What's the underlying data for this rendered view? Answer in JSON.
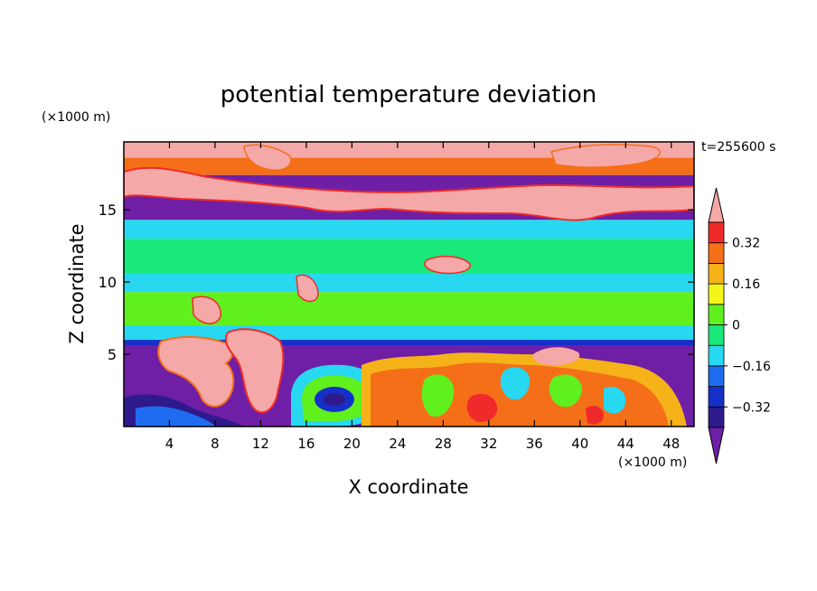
{
  "chart_data": {
    "type": "heatmap",
    "title": "potential temperature deviation",
    "xlabel": "X coordinate",
    "ylabel": "Z coordinate",
    "x_unit": "(×1000 m)",
    "y_unit": "(×1000 m)",
    "time_label": "t=255600 s",
    "xlim": [
      0,
      50
    ],
    "ylim": [
      0,
      19.7
    ],
    "x_ticks": [
      4,
      8,
      12,
      16,
      20,
      24,
      28,
      32,
      36,
      40,
      44,
      48
    ],
    "y_ticks": [
      5,
      10,
      15
    ],
    "colorbar": {
      "levels": [
        -0.4,
        -0.32,
        -0.24,
        -0.16,
        -0.08,
        0,
        0.08,
        0.16,
        0.24,
        0.32,
        0.4
      ],
      "colors": [
        "#2e1a8c",
        "#1530c8",
        "#1f6cf0",
        "#27d8f0",
        "#19e87a",
        "#5ff01e",
        "#f5f51a",
        "#f5b319",
        "#f56f19",
        "#f02a2a"
      ],
      "under_color": "#6f1fa5",
      "over_color": "#f5a8a8",
      "tick_labels": [
        "0.32",
        "0.16",
        "0",
        "−0.16",
        "−0.32"
      ],
      "tick_values": [
        0.32,
        0.16,
        0,
        -0.16,
        -0.32
      ],
      "extend": "both"
    },
    "layers": [
      {
        "z": [
          18.6,
          19.7
        ],
        "value": 0.5
      },
      {
        "z": [
          17.4,
          18.6
        ],
        "value": 0.3
      },
      {
        "z": [
          16.0,
          17.4
        ],
        "value": -0.5
      },
      {
        "z": [
          14.3,
          16.0
        ],
        "value": -0.5
      },
      {
        "z": [
          13.0,
          14.3
        ],
        "value": -0.1
      },
      {
        "z": [
          10.6,
          13.0
        ],
        "value": -0.02
      },
      {
        "z": [
          9.3,
          10.6
        ],
        "value": -0.1
      },
      {
        "z": [
          7.0,
          9.3
        ],
        "value": 0.02
      },
      {
        "z": [
          6.0,
          7.0
        ],
        "value": -0.1
      },
      {
        "z": [
          5.6,
          6.0
        ],
        "value": -0.3
      },
      {
        "z": [
          0,
          5.6
        ],
        "value": -0.5
      }
    ]
  }
}
